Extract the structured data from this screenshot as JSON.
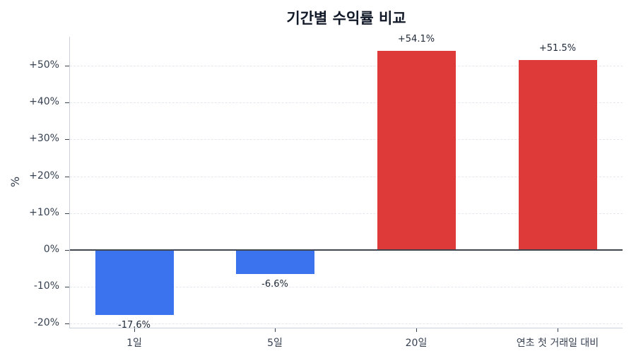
{
  "chart_data": {
    "type": "bar",
    "title": "기간별 수익률 비교",
    "xlabel": "",
    "ylabel": "%",
    "categories": [
      "1일",
      "5일",
      "20일",
      "연초 첫 거래일 대비"
    ],
    "values": [
      -17.6,
      -6.6,
      54.1,
      51.5
    ],
    "value_labels": [
      "-17.6%",
      "-6.6%",
      "+54.1%",
      "+51.5%"
    ],
    "bar_colors": [
      "#3b73ee",
      "#3b73ee",
      "#de3a3a",
      "#de3a3a"
    ],
    "ylim": [
      -21,
      58
    ],
    "yticks": [
      -20,
      -10,
      0,
      10,
      20,
      30,
      40,
      50
    ],
    "ytick_labels": [
      "-20%",
      "-10%",
      "0%",
      "+10%",
      "+20%",
      "+30%",
      "+40%",
      "+50%"
    ],
    "grid": true,
    "legend": null,
    "colors": {
      "negative": "#3b73ee",
      "positive": "#de3a3a",
      "zero_line": "#3f4650"
    }
  }
}
